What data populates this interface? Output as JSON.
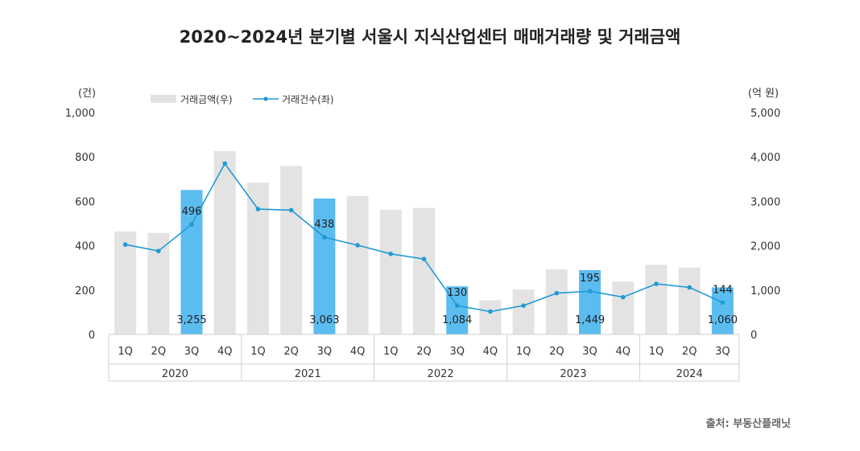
{
  "title": "2020~2024년 분기별 서울시 지식산업센터 매매거래량 및 거래금액",
  "source": "출처: 부동산플래닛",
  "colors": {
    "bar": "#e3e3e3",
    "bar_highlight": "#5bbcf0",
    "line": "#1f9ad6"
  },
  "chart_data": {
    "type": "bar",
    "title": "2020~2024년 분기별 서울시 지식산업센터 매매거래량 및 거래금액",
    "categories": [
      "1Q",
      "2Q",
      "3Q",
      "4Q",
      "1Q",
      "2Q",
      "3Q",
      "4Q",
      "1Q",
      "2Q",
      "3Q",
      "4Q",
      "1Q",
      "2Q",
      "3Q",
      "4Q",
      "1Q",
      "2Q",
      "3Q"
    ],
    "years": [
      "2020",
      "2021",
      "2022",
      "2023",
      "2024"
    ],
    "y_left": {
      "unit": "(건)",
      "ylim": [
        0,
        1000
      ],
      "ticks": [
        "0",
        "200",
        "400",
        "600",
        "800",
        "1,000"
      ]
    },
    "y_right": {
      "unit": "(억 원)",
      "ylim": [
        0,
        5000
      ],
      "ticks": [
        "0",
        "1,000",
        "2,000",
        "3,000",
        "4,000",
        "5,000"
      ]
    },
    "legend": {
      "placement": "top-left"
    },
    "series": [
      {
        "name": "거래금액(우)",
        "type": "bar",
        "axis": "right",
        "values": [
          2320,
          2290,
          3255,
          4130,
          3420,
          3800,
          3063,
          3120,
          2810,
          2850,
          1084,
          770,
          1010,
          1470,
          1449,
          1190,
          1570,
          1510,
          1060
        ],
        "highlight": [
          2,
          6,
          10,
          14,
          18
        ]
      },
      {
        "name": "거래건수(좌)",
        "type": "line",
        "axis": "left",
        "values": [
          405,
          376,
          496,
          770,
          565,
          560,
          438,
          402,
          363,
          340,
          130,
          103,
          130,
          186,
          195,
          168,
          228,
          212,
          144
        ]
      }
    ],
    "annotations": [
      {
        "index": 2,
        "count": "496",
        "amount": "3,255"
      },
      {
        "index": 6,
        "count": "438",
        "amount": "3,063"
      },
      {
        "index": 10,
        "count": "130",
        "amount": "1,084"
      },
      {
        "index": 14,
        "count": "195",
        "amount": "1,449"
      },
      {
        "index": 18,
        "count": "144",
        "amount": "1,060"
      }
    ]
  }
}
